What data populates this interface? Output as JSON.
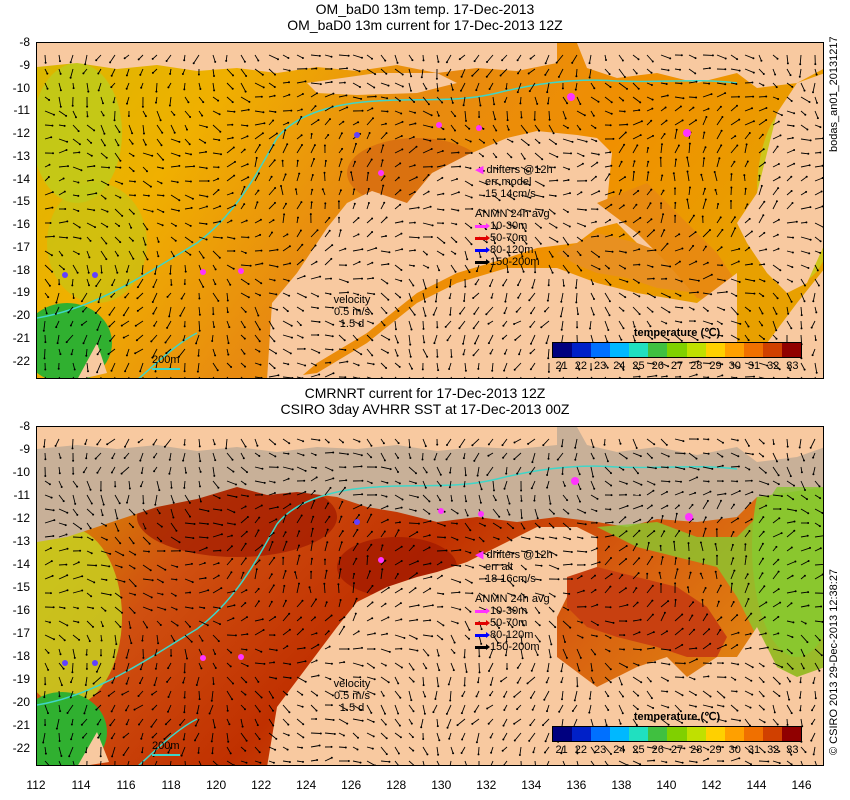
{
  "top_panel": {
    "title_line1": "OM_baD0 13m temp. 17-Dec-2013",
    "title_line2": "OM_baD0 13m current for 17-Dec-2013 12Z",
    "side_label": "bodas_an01_20131217",
    "legend": {
      "drifters": "drifters @12h",
      "err": "err model",
      "err_values": "15 14cm/s",
      "anmn_title": "ANMN 24h avg",
      "depths": [
        {
          "label": "10-30m",
          "color": "#ff33ff"
        },
        {
          "label": "50-70m",
          "color": "#e00000"
        },
        {
          "label": "80-120m",
          "color": "#0000ff"
        },
        {
          "label": "150-200m",
          "color": "#000000"
        }
      ]
    },
    "velocity": {
      "label": "velocity",
      "speed": "0.5 m/s",
      "duration": "1.5 d"
    },
    "isobath_label": "200m",
    "colorbar_label": "temperature (℃)"
  },
  "bottom_panel": {
    "title_line1": "CMRNRT current for 17-Dec-2013 12Z",
    "title_line2": "CSIRO 3day AVHRR SST at 17-Dec-2013 00Z",
    "side_label": "© CSIRO 2013   29-Dec-2013 12:38:27",
    "legend": {
      "drifters": "drifters @12h",
      "err": "err alt",
      "err_values": "18 16cm/s",
      "anmn_title": "ANMN 24h avg",
      "depths": [
        {
          "label": "10-30m",
          "color": "#ff33ff"
        },
        {
          "label": "50-70m",
          "color": "#e00000"
        },
        {
          "label": "80-120m",
          "color": "#0000ff"
        },
        {
          "label": "150-200m",
          "color": "#000000"
        }
      ]
    },
    "velocity": {
      "label": "velocity",
      "speed": "0.5 m/s",
      "duration": "1.5 d"
    },
    "isobath_label": "200m",
    "colorbar_label": "temperature (℃)"
  },
  "axes": {
    "lat_ticks": [
      "-8",
      "-9",
      "-10",
      "-11",
      "-12",
      "-13",
      "-14",
      "-15",
      "-16",
      "-17",
      "-18",
      "-19",
      "-20",
      "-21",
      "-22"
    ],
    "lon_ticks": [
      "112",
      "114",
      "116",
      "118",
      "120",
      "122",
      "124",
      "126",
      "128",
      "130",
      "132",
      "134",
      "136",
      "138",
      "140",
      "142",
      "144",
      "146"
    ]
  },
  "colorbar": {
    "ticks": [
      "21",
      "22",
      "23",
      "24",
      "25",
      "26",
      "27",
      "28",
      "29",
      "30",
      "31",
      "32",
      "33"
    ],
    "colors": [
      "#00007f",
      "#0020c8",
      "#0070ff",
      "#00b8ff",
      "#20e0c0",
      "#40c040",
      "#80d000",
      "#c0e000",
      "#ffd000",
      "#ffa000",
      "#f07000",
      "#d04000",
      "#900000"
    ]
  },
  "colors": {
    "land": "#f8c9a0",
    "cloud": "#c8b098",
    "isobath": "#3fd6c8",
    "drifter": "#ff33ff"
  }
}
